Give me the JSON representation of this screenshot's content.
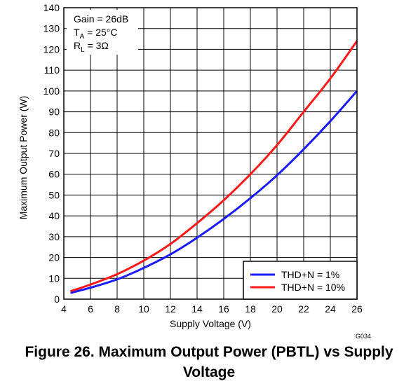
{
  "caption": "Figure 26. Maximum Output Power (PBTL) vs Supply Voltage",
  "figure_code": "G034",
  "annotations": {
    "gain": "Gain = 26dB",
    "ta_main": "T",
    "ta_sub": "A",
    "ta_rest": " = 25°C",
    "rl_main": "R",
    "rl_sub": "L",
    "rl_rest": " = 3Ω"
  },
  "colors": {
    "thd1": "#1a1aff",
    "thd10": "#ff1a1a",
    "grid": "#000000"
  },
  "chart_data": {
    "type": "line",
    "title": "",
    "xlabel": "Supply Voltage (V)",
    "ylabel": "Maximum Output Power (W)",
    "xlim": [
      4,
      26
    ],
    "ylim": [
      0,
      140
    ],
    "xticks": [
      4,
      6,
      8,
      10,
      12,
      14,
      16,
      18,
      20,
      22,
      24,
      26
    ],
    "yticks": [
      0,
      10,
      20,
      30,
      40,
      50,
      60,
      70,
      80,
      90,
      100,
      110,
      120,
      130,
      140
    ],
    "grid": true,
    "legend_position": "bottom-right",
    "series": [
      {
        "name": "THD+N = 1%",
        "color": "#1a1aff",
        "x": [
          4.5,
          6,
          8,
          10,
          12,
          14,
          16,
          18,
          20,
          22,
          24,
          26
        ],
        "y": [
          3,
          5.5,
          9.5,
          15,
          21.5,
          29.5,
          38.5,
          48.5,
          59.5,
          72,
          85.5,
          100
        ]
      },
      {
        "name": "THD+N = 10%",
        "color": "#ff1a1a",
        "x": [
          4.5,
          6,
          8,
          10,
          12,
          14,
          16,
          18,
          20,
          22,
          24,
          26
        ],
        "y": [
          3.8,
          7,
          12,
          18.5,
          26.5,
          36.5,
          47.5,
          60,
          74,
          90,
          106,
          124
        ]
      }
    ]
  }
}
